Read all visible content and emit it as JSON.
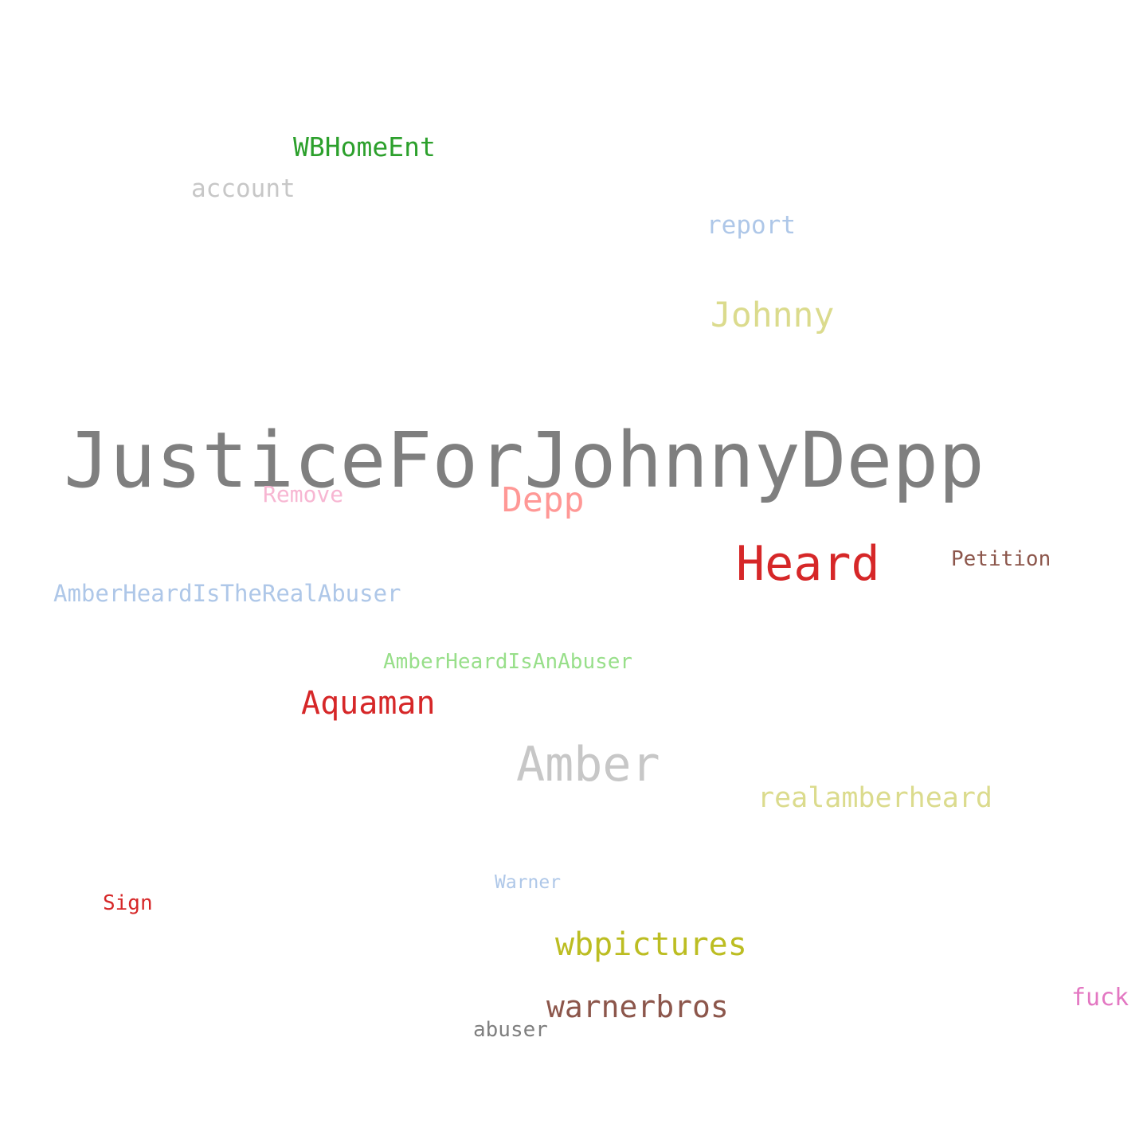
{
  "word_cloud": {
    "words": {
      "justice": {
        "text": "JusticeForJohnnyDepp",
        "color": "#7f7f7f"
      },
      "heard": {
        "text": "Heard",
        "color": "#d62728"
      },
      "amber": {
        "text": "Amber",
        "color": "#c7c7c7"
      },
      "depp": {
        "text": "Depp",
        "color": "#ff9896"
      },
      "johnny": {
        "text": "Johnny",
        "color": "#dbdb8d"
      },
      "aquaman": {
        "text": "Aquaman",
        "color": "#d62728"
      },
      "wbpictures": {
        "text": "wbpictures",
        "color": "#bcbd22"
      },
      "warnerbros": {
        "text": "warnerbros",
        "color": "#8c564b"
      },
      "realamber": {
        "text": "realamberheard",
        "color": "#dbdb8d"
      },
      "wbhome": {
        "text": "WBHomeEnt",
        "color": "#2ca02c"
      },
      "account": {
        "text": "account",
        "color": "#c7c7c7"
      },
      "report": {
        "text": "report",
        "color": "#aec7e8"
      },
      "ahreal": {
        "text": "AmberHeardIsTheRealAbuser",
        "color": "#aec7e8"
      },
      "fuck": {
        "text": "fuck",
        "color": "#e377c2"
      },
      "remove": {
        "text": "Remove",
        "color": "#f7b6d2"
      },
      "petition": {
        "text": "Petition",
        "color": "#8c564b"
      },
      "ahabuser": {
        "text": "AmberHeardIsAnAbuser",
        "color": "#98df8a"
      },
      "sign": {
        "text": "Sign",
        "color": "#d62728"
      },
      "abuser": {
        "text": "abuser",
        "color": "#7f7f7f"
      },
      "warner": {
        "text": "Warner",
        "color": "#aec7e8"
      }
    }
  }
}
